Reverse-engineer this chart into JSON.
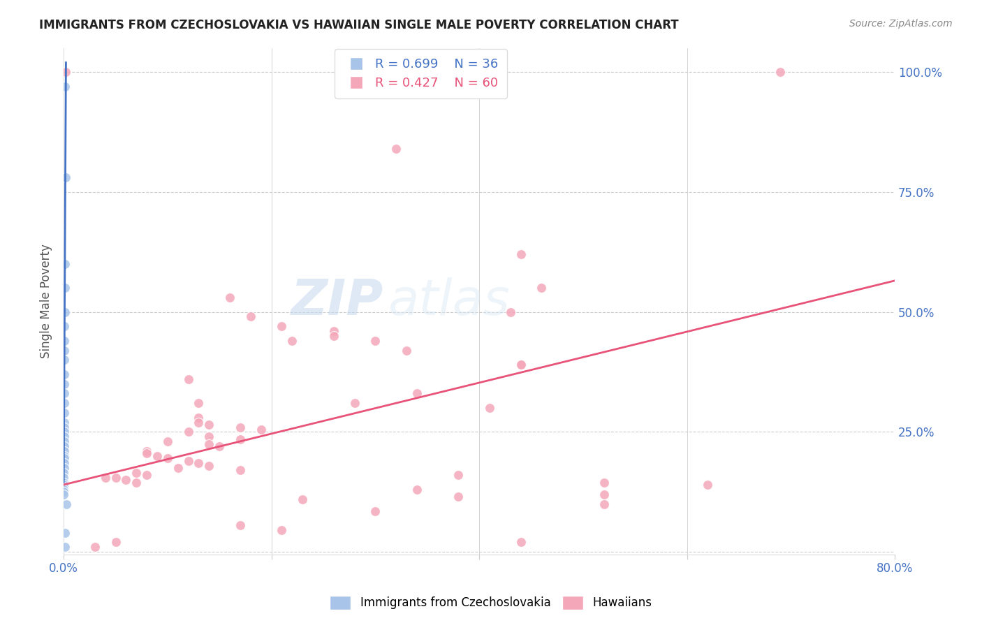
{
  "title": "IMMIGRANTS FROM CZECHOSLOVAKIA VS HAWAIIAN SINGLE MALE POVERTY CORRELATION CHART",
  "source": "Source: ZipAtlas.com",
  "ylabel": "Single Male Poverty",
  "watermark": "ZIPatlas",
  "blue_color": "#a8c4e8",
  "blue_line_color": "#4472c4",
  "pink_color": "#f4a7b9",
  "pink_line_color": "#e8537a",
  "blue_scatter": [
    [
      0.0015,
      0.97
    ],
    [
      0.0022,
      0.78
    ],
    [
      0.001,
      0.6
    ],
    [
      0.001,
      0.55
    ],
    [
      0.001,
      0.5
    ],
    [
      0.0008,
      0.47
    ],
    [
      0.0008,
      0.44
    ],
    [
      0.0008,
      0.42
    ],
    [
      0.0006,
      0.4
    ],
    [
      0.0006,
      0.37
    ],
    [
      0.0006,
      0.35
    ],
    [
      0.0005,
      0.33
    ],
    [
      0.0005,
      0.31
    ],
    [
      0.0005,
      0.29
    ],
    [
      0.0005,
      0.27
    ],
    [
      0.0004,
      0.26
    ],
    [
      0.0004,
      0.25
    ],
    [
      0.0004,
      0.24
    ],
    [
      0.0004,
      0.23
    ],
    [
      0.0003,
      0.22
    ],
    [
      0.0003,
      0.21
    ],
    [
      0.0003,
      0.2
    ],
    [
      0.0003,
      0.195
    ],
    [
      0.0003,
      0.185
    ],
    [
      0.0003,
      0.175
    ],
    [
      0.0002,
      0.165
    ],
    [
      0.0002,
      0.155
    ],
    [
      0.0002,
      0.145
    ],
    [
      0.0002,
      0.14
    ],
    [
      0.0002,
      0.135
    ],
    [
      0.0001,
      0.13
    ],
    [
      0.0001,
      0.125
    ],
    [
      0.0001,
      0.12
    ],
    [
      0.0025,
      0.1
    ],
    [
      0.001,
      0.04
    ],
    [
      0.001,
      0.01
    ]
  ],
  "pink_scatter": [
    [
      0.002,
      1.0
    ],
    [
      0.69,
      1.0
    ],
    [
      0.32,
      0.84
    ],
    [
      0.44,
      0.62
    ],
    [
      0.46,
      0.55
    ],
    [
      0.16,
      0.53
    ],
    [
      0.43,
      0.5
    ],
    [
      0.18,
      0.49
    ],
    [
      0.21,
      0.47
    ],
    [
      0.26,
      0.46
    ],
    [
      0.26,
      0.45
    ],
    [
      0.22,
      0.44
    ],
    [
      0.3,
      0.44
    ],
    [
      0.33,
      0.42
    ],
    [
      0.44,
      0.39
    ],
    [
      0.44,
      0.39
    ],
    [
      0.12,
      0.36
    ],
    [
      0.34,
      0.33
    ],
    [
      0.13,
      0.31
    ],
    [
      0.28,
      0.31
    ],
    [
      0.41,
      0.3
    ],
    [
      0.13,
      0.28
    ],
    [
      0.13,
      0.27
    ],
    [
      0.14,
      0.265
    ],
    [
      0.17,
      0.26
    ],
    [
      0.19,
      0.255
    ],
    [
      0.12,
      0.25
    ],
    [
      0.14,
      0.24
    ],
    [
      0.17,
      0.235
    ],
    [
      0.1,
      0.23
    ],
    [
      0.14,
      0.225
    ],
    [
      0.15,
      0.22
    ],
    [
      0.08,
      0.21
    ],
    [
      0.08,
      0.205
    ],
    [
      0.09,
      0.2
    ],
    [
      0.1,
      0.195
    ],
    [
      0.12,
      0.19
    ],
    [
      0.13,
      0.185
    ],
    [
      0.14,
      0.18
    ],
    [
      0.11,
      0.175
    ],
    [
      0.17,
      0.17
    ],
    [
      0.07,
      0.165
    ],
    [
      0.08,
      0.16
    ],
    [
      0.04,
      0.155
    ],
    [
      0.05,
      0.155
    ],
    [
      0.06,
      0.15
    ],
    [
      0.07,
      0.145
    ],
    [
      0.52,
      0.145
    ],
    [
      0.62,
      0.14
    ],
    [
      0.38,
      0.16
    ],
    [
      0.34,
      0.13
    ],
    [
      0.52,
      0.12
    ],
    [
      0.38,
      0.115
    ],
    [
      0.23,
      0.11
    ],
    [
      0.52,
      0.1
    ],
    [
      0.3,
      0.085
    ],
    [
      0.17,
      0.055
    ],
    [
      0.21,
      0.045
    ],
    [
      0.44,
      0.02
    ],
    [
      0.05,
      0.02
    ],
    [
      0.03,
      0.01
    ]
  ],
  "blue_line": {
    "x0": 0.0,
    "y0": 0.145,
    "x1": 0.0022,
    "y1": 1.02
  },
  "pink_line": {
    "x0": 0.0,
    "y0": 0.14,
    "x1": 0.8,
    "y1": 0.565
  },
  "xlim": [
    0.0,
    0.8
  ],
  "ylim": [
    -0.005,
    1.05
  ],
  "xtick_positions": [
    0.0,
    0.2,
    0.4,
    0.6,
    0.8
  ],
  "xtick_labels": [
    "0.0%",
    "",
    "",
    "",
    "80.0%"
  ],
  "ytick_positions": [
    0.0,
    0.25,
    0.5,
    0.75,
    1.0
  ],
  "ytick_labels_right": [
    "",
    "25.0%",
    "50.0%",
    "75.0%",
    "100.0%"
  ]
}
